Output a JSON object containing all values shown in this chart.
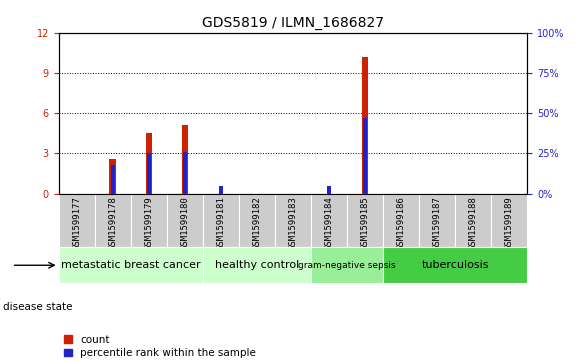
{
  "title": "GDS5819 / ILMN_1686827",
  "samples": [
    "GSM1599177",
    "GSM1599178",
    "GSM1599179",
    "GSM1599180",
    "GSM1599181",
    "GSM1599182",
    "GSM1599183",
    "GSM1599184",
    "GSM1599185",
    "GSM1599186",
    "GSM1599187",
    "GSM1599188",
    "GSM1599189"
  ],
  "count_values": [
    0,
    2.6,
    4.5,
    5.1,
    0,
    0,
    0,
    0,
    10.2,
    0,
    0,
    0,
    0
  ],
  "percentile_values": [
    0,
    18,
    25,
    26,
    5,
    0,
    0,
    5,
    47,
    0,
    0,
    0,
    0
  ],
  "ylim_left": [
    0,
    12
  ],
  "ylim_right": [
    0,
    100
  ],
  "yticks_left": [
    0,
    3,
    6,
    9,
    12
  ],
  "yticks_right": [
    0,
    25,
    50,
    75,
    100
  ],
  "disease_groups": [
    {
      "label": "metastatic breast cancer",
      "start": 0,
      "end": 4,
      "color": "#ccffcc"
    },
    {
      "label": "healthy control",
      "start": 4,
      "end": 7,
      "color": "#ccffcc"
    },
    {
      "label": "gram-negative sepsis",
      "start": 7,
      "end": 9,
      "color": "#99ee99"
    },
    {
      "label": "tuberculosis",
      "start": 9,
      "end": 13,
      "color": "#44cc44"
    }
  ],
  "count_bar_width": 0.18,
  "percentile_bar_width": 0.12,
  "count_color": "#cc2200",
  "percentile_color": "#2222cc",
  "sample_bg_color": "#cccccc",
  "plot_bg_color": "#ffffff",
  "legend_count_label": "count",
  "legend_percentile_label": "percentile rank within the sample",
  "disease_state_label": "disease state",
  "title_fontsize": 10,
  "tick_fontsize": 7,
  "label_fontsize": 8,
  "legend_fontsize": 7.5
}
